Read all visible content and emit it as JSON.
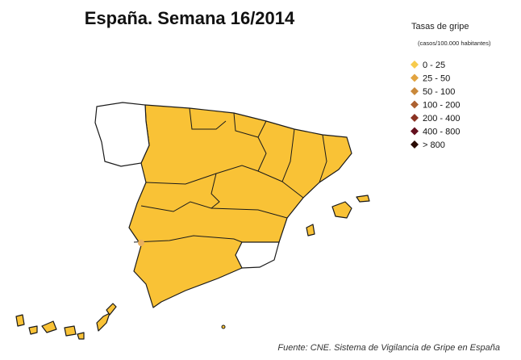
{
  "header": {
    "title": "España. Semana 16/2014"
  },
  "legend": {
    "title": "Tasas de gripe",
    "subtitle": "(casos/100.000 habitantes)",
    "items": [
      {
        "label": "0 - 25",
        "color": "#f7cb4d"
      },
      {
        "label": "25 - 50",
        "color": "#e2a43f"
      },
      {
        "label": "50 - 100",
        "color": "#c9883a"
      },
      {
        "label": "100 - 200",
        "color": "#ad6130"
      },
      {
        "label": "200 - 400",
        "color": "#8a3222"
      },
      {
        "label": "400 - 800",
        "color": "#64101e"
      },
      {
        "label": "> 800",
        "color": "#2a0a02"
      }
    ]
  },
  "footer": {
    "source": "Fuente: CNE. Sistema de Vigilancia de Gripe en España"
  }
}
